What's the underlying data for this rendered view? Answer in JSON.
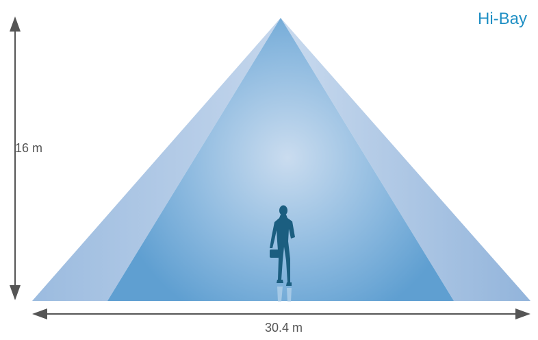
{
  "title": "Hi-Bay",
  "dimensions": {
    "height_label": "16 m",
    "width_label": "30.4 m"
  },
  "colors": {
    "title": "#1f8fc4",
    "outer_beam": "#a8c6e4",
    "inner_beam": "#6fa8d7",
    "beam_center": "#c9dbf0",
    "arrow": "#555555",
    "figure": "#1b5e80"
  },
  "icons": {
    "person": "businesswoman-silhouette-icon"
  }
}
